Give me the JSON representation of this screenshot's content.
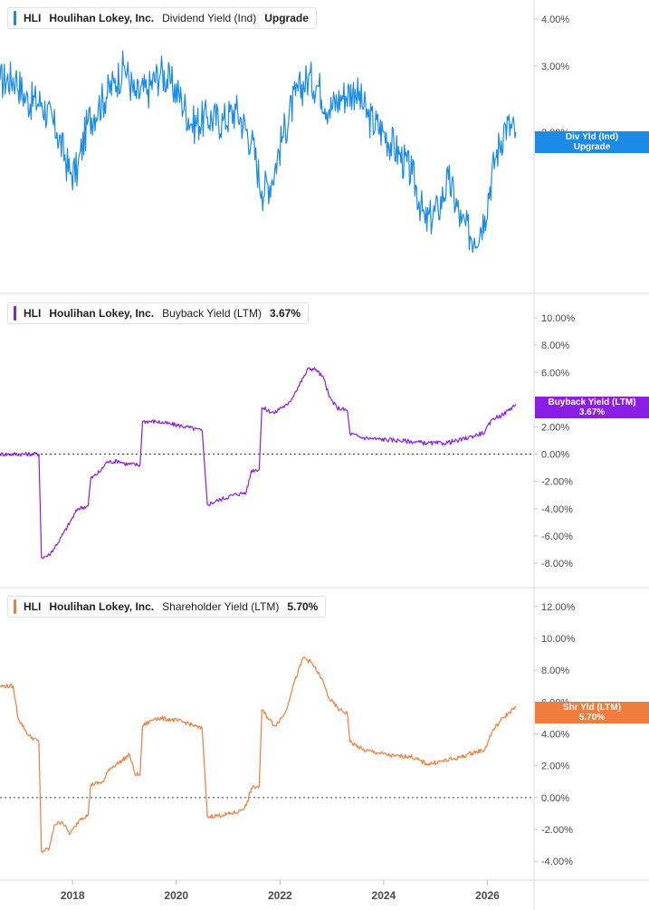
{
  "ticker": "HLI",
  "company": "Houlihan Lokey, Inc.",
  "x_axis": {
    "ticks": [
      "2018",
      "2020",
      "2022",
      "2024",
      "2026"
    ],
    "tick_values": [
      2018,
      2020,
      2022,
      2024,
      2026
    ],
    "range": [
      2016.6,
      2026.9
    ]
  },
  "panels": [
    {
      "metric": "Dividend Yield (Ind)",
      "value": "Upgrade",
      "color": "#1a8be6",
      "flag_line1": "Div Yld (Ind)",
      "flag_line2": "Upgrade",
      "y_ticks": [
        "4.00%",
        "3.00%",
        "2.00%"
      ]
    },
    {
      "metric": "Buyback Yield (LTM)",
      "value": "3.67%",
      "color": "#8a1ee6",
      "flag_line1": "Buyback Yield (LTM)",
      "flag_line2": "3.67%",
      "y_ticks": [
        "10.00%",
        "8.00%",
        "6.00%",
        "4.00%",
        "2.00%",
        "0.00%",
        "-2.00%",
        "-4.00%",
        "-6.00%",
        "-8.00%"
      ]
    },
    {
      "metric": "Shareholder Yield (LTM)",
      "value": "5.70%",
      "color": "#f07d3c",
      "flag_line1": "Shr Yld (LTM)",
      "flag_line2": "5.70%",
      "y_ticks": [
        "12.00%",
        "10.00%",
        "8.00%",
        "6.00%",
        "4.00%",
        "2.00%",
        "0.00%",
        "-2.00%",
        "-4.00%"
      ]
    }
  ],
  "chart_data": [
    {
      "type": "line",
      "title": "HLI Houlihan Lokey, Inc. Dividend Yield (Ind)",
      "series_name": "Dividend Yield (Ind)",
      "ylim": [
        0.8,
        4.2
      ],
      "log_scale": true,
      "zero_line": false,
      "points": [
        [
          2016.6,
          2.75
        ],
        [
          2016.9,
          2.8
        ],
        [
          2017.1,
          2.45
        ],
        [
          2017.4,
          2.4
        ],
        [
          2017.7,
          2.0
        ],
        [
          2017.95,
          1.55
        ],
        [
          2018.1,
          1.6
        ],
        [
          2018.3,
          2.15
        ],
        [
          2018.5,
          2.35
        ],
        [
          2018.8,
          2.7
        ],
        [
          2019.0,
          3.0
        ],
        [
          2019.2,
          2.5
        ],
        [
          2019.45,
          2.6
        ],
        [
          2019.7,
          2.9
        ],
        [
          2019.9,
          2.7
        ],
        [
          2020.1,
          2.45
        ],
        [
          2020.3,
          2.1
        ],
        [
          2020.6,
          2.2
        ],
        [
          2020.9,
          2.15
        ],
        [
          2021.15,
          2.3
        ],
        [
          2021.45,
          1.9
        ],
        [
          2021.65,
          1.4
        ],
        [
          2021.85,
          1.5
        ],
        [
          2022.05,
          1.95
        ],
        [
          2022.3,
          2.5
        ],
        [
          2022.55,
          2.8
        ],
        [
          2022.75,
          2.65
        ],
        [
          2022.95,
          2.3
        ],
        [
          2023.2,
          2.5
        ],
        [
          2023.45,
          2.6
        ],
        [
          2023.7,
          2.2
        ],
        [
          2024.0,
          2.0
        ],
        [
          2024.3,
          1.75
        ],
        [
          2024.55,
          1.55
        ],
        [
          2024.8,
          1.15
        ],
        [
          2025.05,
          1.25
        ],
        [
          2025.25,
          1.5
        ],
        [
          2025.5,
          1.15
        ],
        [
          2025.75,
          1.05
        ],
        [
          2025.95,
          1.2
        ],
        [
          2026.15,
          1.7
        ],
        [
          2026.35,
          2.1
        ],
        [
          2026.55,
          2.0
        ]
      ]
    },
    {
      "type": "line",
      "title": "HLI Houlihan Lokey, Inc. Buyback Yield (LTM)",
      "series_name": "Buyback Yield (LTM)",
      "ylim": [
        -9,
        11
      ],
      "zero_line": true,
      "points": [
        [
          2016.6,
          0.0
        ],
        [
          2017.35,
          0.0
        ],
        [
          2017.4,
          -7.6
        ],
        [
          2017.55,
          -7.4
        ],
        [
          2017.75,
          -6.3
        ],
        [
          2017.95,
          -5.0
        ],
        [
          2018.1,
          -4.0
        ],
        [
          2018.3,
          -3.8
        ],
        [
          2018.35,
          -1.8
        ],
        [
          2018.55,
          -1.2
        ],
        [
          2018.65,
          -0.6
        ],
        [
          2018.9,
          -0.5
        ],
        [
          2019.0,
          -0.7
        ],
        [
          2019.3,
          -0.8
        ],
        [
          2019.35,
          2.4
        ],
        [
          2019.6,
          2.4
        ],
        [
          2019.9,
          2.2
        ],
        [
          2020.2,
          2.0
        ],
        [
          2020.5,
          1.7
        ],
        [
          2020.6,
          -3.7
        ],
        [
          2020.8,
          -3.4
        ],
        [
          2021.1,
          -3.0
        ],
        [
          2021.35,
          -2.8
        ],
        [
          2021.45,
          -1.2
        ],
        [
          2021.6,
          -1.1
        ],
        [
          2021.65,
          3.4
        ],
        [
          2021.9,
          3.0
        ],
        [
          2022.0,
          3.4
        ],
        [
          2022.15,
          3.6
        ],
        [
          2022.3,
          4.6
        ],
        [
          2022.45,
          5.6
        ],
        [
          2022.55,
          6.3
        ],
        [
          2022.7,
          6.2
        ],
        [
          2022.85,
          5.5
        ],
        [
          2022.95,
          4.2
        ],
        [
          2023.1,
          3.4
        ],
        [
          2023.3,
          3.2
        ],
        [
          2023.35,
          1.5
        ],
        [
          2023.6,
          1.2
        ],
        [
          2023.9,
          1.1
        ],
        [
          2024.3,
          1.0
        ],
        [
          2024.6,
          0.9
        ],
        [
          2024.85,
          0.8
        ],
        [
          2025.15,
          0.8
        ],
        [
          2025.45,
          1.0
        ],
        [
          2025.7,
          1.3
        ],
        [
          2025.95,
          1.6
        ],
        [
          2026.1,
          2.6
        ],
        [
          2026.3,
          2.9
        ],
        [
          2026.55,
          3.67
        ]
      ]
    },
    {
      "type": "line",
      "title": "HLI Houlihan Lokey, Inc. Shareholder Yield (LTM)",
      "series_name": "Shareholder Yield (LTM)",
      "ylim": [
        -4.5,
        12.5
      ],
      "zero_line": true,
      "points": [
        [
          2016.6,
          7.0
        ],
        [
          2016.85,
          7.0
        ],
        [
          2016.95,
          5.0
        ],
        [
          2017.15,
          3.9
        ],
        [
          2017.35,
          3.5
        ],
        [
          2017.4,
          -3.4
        ],
        [
          2017.55,
          -3.2
        ],
        [
          2017.65,
          -1.7
        ],
        [
          2017.8,
          -1.5
        ],
        [
          2017.95,
          -2.3
        ],
        [
          2018.05,
          -1.8
        ],
        [
          2018.15,
          -1.3
        ],
        [
          2018.3,
          -1.1
        ],
        [
          2018.35,
          0.8
        ],
        [
          2018.6,
          1.0
        ],
        [
          2018.7,
          1.8
        ],
        [
          2018.9,
          2.2
        ],
        [
          2019.1,
          2.7
        ],
        [
          2019.2,
          1.5
        ],
        [
          2019.3,
          1.4
        ],
        [
          2019.35,
          4.5
        ],
        [
          2019.6,
          5.0
        ],
        [
          2019.9,
          4.9
        ],
        [
          2020.2,
          4.7
        ],
        [
          2020.5,
          4.3
        ],
        [
          2020.6,
          -1.2
        ],
        [
          2020.9,
          -1.1
        ],
        [
          2021.2,
          -0.9
        ],
        [
          2021.35,
          -0.5
        ],
        [
          2021.45,
          0.6
        ],
        [
          2021.6,
          0.7
        ],
        [
          2021.65,
          5.5
        ],
        [
          2021.9,
          4.5
        ],
        [
          2022.1,
          5.3
        ],
        [
          2022.25,
          7.0
        ],
        [
          2022.45,
          8.8
        ],
        [
          2022.6,
          8.5
        ],
        [
          2022.8,
          7.5
        ],
        [
          2022.95,
          6.2
        ],
        [
          2023.15,
          5.5
        ],
        [
          2023.3,
          5.3
        ],
        [
          2023.35,
          3.5
        ],
        [
          2023.6,
          3.0
        ],
        [
          2023.9,
          2.8
        ],
        [
          2024.2,
          2.6
        ],
        [
          2024.5,
          2.6
        ],
        [
          2024.85,
          2.1
        ],
        [
          2025.15,
          2.3
        ],
        [
          2025.45,
          2.5
        ],
        [
          2025.7,
          2.8
        ],
        [
          2025.95,
          3.0
        ],
        [
          2026.1,
          4.2
        ],
        [
          2026.3,
          5.0
        ],
        [
          2026.55,
          5.7
        ]
      ]
    }
  ]
}
